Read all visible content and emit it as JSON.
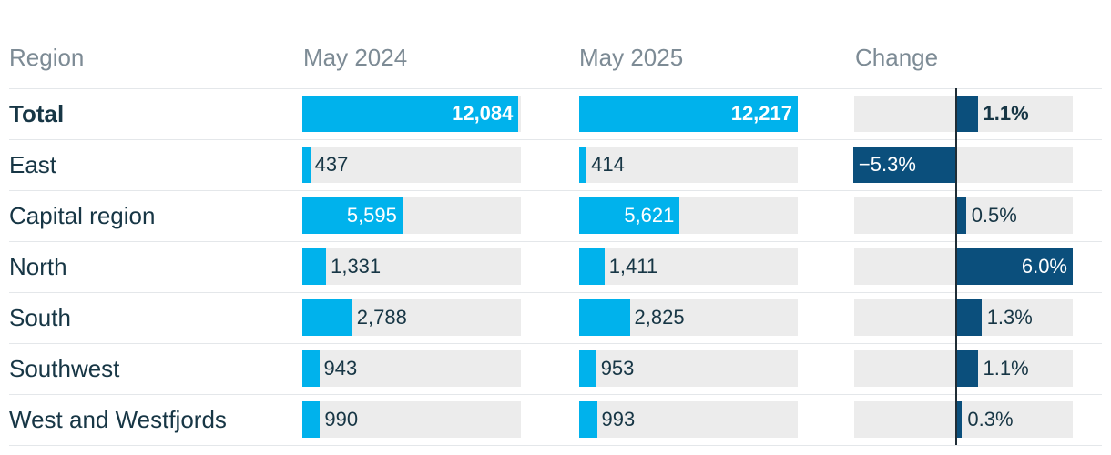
{
  "columns": {
    "region": "Region",
    "y2024": "May 2024",
    "y2025": "May 2025",
    "change": "Change"
  },
  "colors": {
    "value_bar": "#00b2ec",
    "change_bar": "#0b4f7c",
    "track": "#ececec",
    "zero_line": "#1f2d36"
  },
  "chart_data": {
    "type": "table",
    "columns": [
      "Region",
      "May 2024",
      "May 2025",
      "Change"
    ],
    "value_scale_max": 12217,
    "change_range": [
      -6.0,
      6.0
    ],
    "rows": [
      {
        "region": "Total",
        "may2024": 12084,
        "may2024_label": "12,084",
        "may2025": 12217,
        "may2025_label": "12,217",
        "change": 1.1,
        "change_label": "1.1%",
        "bold": true
      },
      {
        "region": "East",
        "may2024": 437,
        "may2024_label": "437",
        "may2025": 414,
        "may2025_label": "414",
        "change": -5.3,
        "change_label": "−5.3%"
      },
      {
        "region": "Capital region",
        "may2024": 5595,
        "may2024_label": "5,595",
        "may2025": 5621,
        "may2025_label": "5,621",
        "change": 0.5,
        "change_label": "0.5%"
      },
      {
        "region": "North",
        "may2024": 1331,
        "may2024_label": "1,331",
        "may2025": 1411,
        "may2025_label": "1,411",
        "change": 6.0,
        "change_label": "6.0%"
      },
      {
        "region": "South",
        "may2024": 2788,
        "may2024_label": "2,788",
        "may2025": 2825,
        "may2025_label": "2,825",
        "change": 1.3,
        "change_label": "1.3%"
      },
      {
        "region": "Southwest",
        "may2024": 943,
        "may2024_label": "943",
        "may2025": 953,
        "may2025_label": "953",
        "change": 1.1,
        "change_label": "1.1%"
      },
      {
        "region": "West and Westfjords",
        "may2024": 990,
        "may2024_label": "990",
        "may2025": 993,
        "may2025_label": "993",
        "change": 0.3,
        "change_label": "0.3%"
      }
    ]
  }
}
